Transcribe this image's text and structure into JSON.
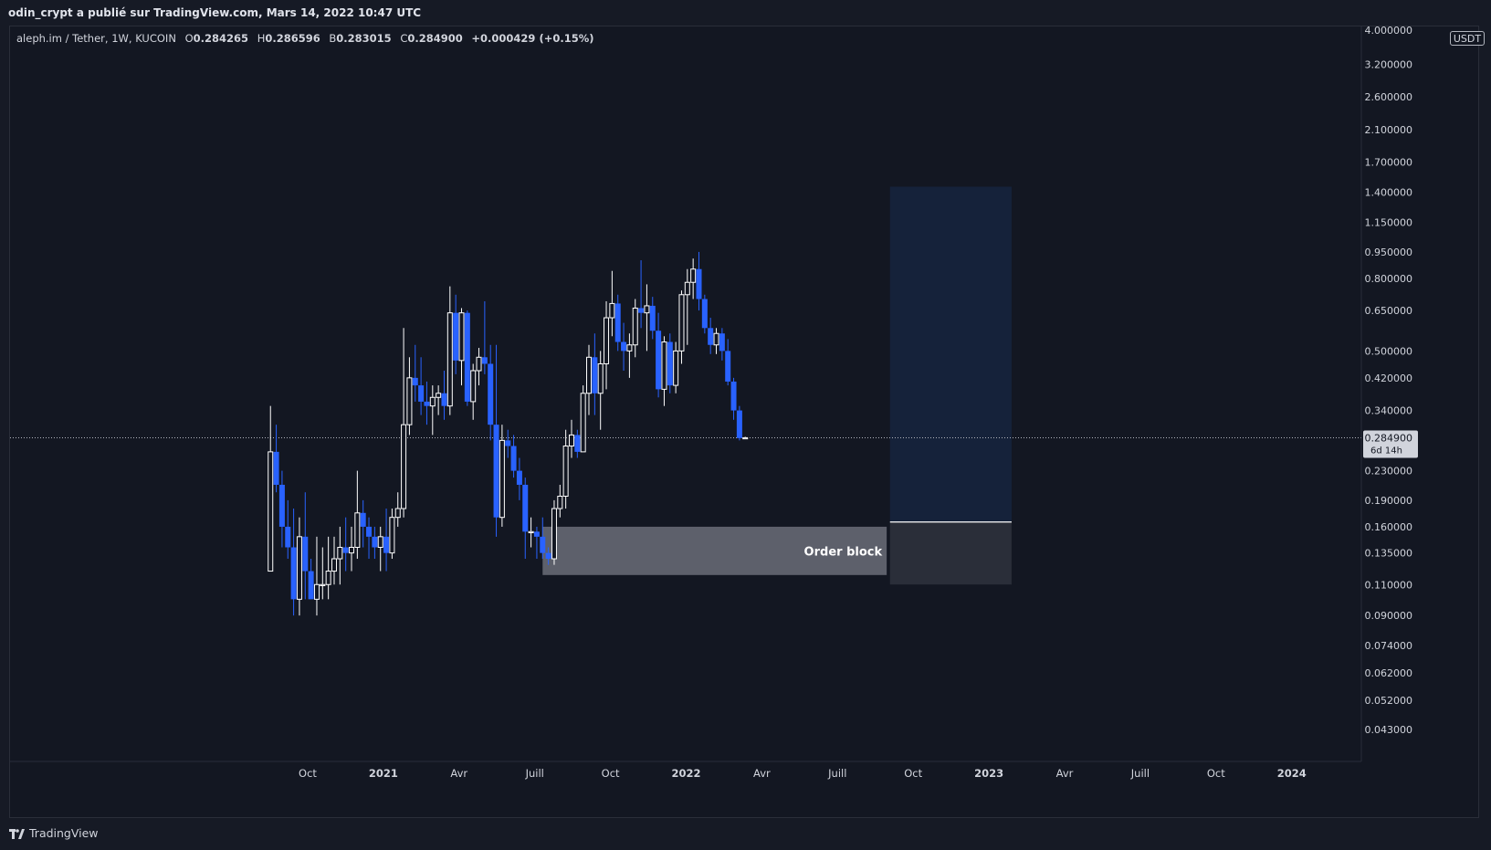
{
  "header": {
    "publisher_text": "odin_crypt a publié sur TradingView.com, Mars 14, 2022 10:47 UTC"
  },
  "legend": {
    "symbol": "aleph.im / Tether, 1W, KUCOIN",
    "open_key": "O",
    "open": "0.284265",
    "high_key": "H",
    "high": "0.286596",
    "low_key": "B",
    "low": "0.283015",
    "close_key": "C",
    "close": "0.284900",
    "change": "+0.000429 (+0.15%)"
  },
  "price_axis": {
    "unit": "USDT",
    "top_partial_label": "4.000000",
    "ticks": [
      "3.200000",
      "2.600000",
      "2.100000",
      "1.700000",
      "1.400000",
      "1.150000",
      "0.950000",
      "0.800000",
      "0.650000",
      "0.500000",
      "0.420000",
      "0.340000",
      "0.230000",
      "0.190000",
      "0.160000",
      "0.135000",
      "0.110000",
      "0.090000",
      "0.074000",
      "0.062000",
      "0.052000",
      "0.043000"
    ],
    "last_price_label": "0.284900",
    "countdown_label": "6d 14h"
  },
  "time_axis": {
    "labels": [
      "Oct",
      "2021",
      "Avr",
      "Juill",
      "Oct",
      "2022",
      "Avr",
      "Juill",
      "Oct",
      "2023",
      "Avr",
      "Juill",
      "Oct",
      "2024"
    ],
    "bold_labels": [
      "2021",
      "2022",
      "2023",
      "2024"
    ]
  },
  "annotations": {
    "order_block_label": "Order block"
  },
  "footer": {
    "brand": "TradingView"
  },
  "colors": {
    "background": "#131722",
    "up_candle": "#ffffff",
    "down_candle": "#2962ff",
    "order_block": "#5d606b",
    "target_zone": "#15223a",
    "stop_zone": "#2a2e39",
    "last_price_line": "#b2b5be"
  },
  "chart_data": {
    "type": "candlestick",
    "symbol": "aleph.im / Tether",
    "interval": "1W",
    "exchange": "KUCOIN",
    "y_scale": "log",
    "ylim": [
      0.036,
      4.0
    ],
    "last_price": 0.2849,
    "candles": [
      {
        "d": "2020-08-17",
        "o": 0.12,
        "h": 0.35,
        "l": 0.12,
        "c": 0.26
      },
      {
        "d": "2020-08-24",
        "o": 0.26,
        "h": 0.31,
        "l": 0.2,
        "c": 0.21
      },
      {
        "d": "2020-08-31",
        "o": 0.21,
        "h": 0.23,
        "l": 0.14,
        "c": 0.16
      },
      {
        "d": "2020-09-07",
        "o": 0.16,
        "h": 0.19,
        "l": 0.13,
        "c": 0.14
      },
      {
        "d": "2020-09-14",
        "o": 0.14,
        "h": 0.18,
        "l": 0.09,
        "c": 0.1
      },
      {
        "d": "2020-09-21",
        "o": 0.1,
        "h": 0.17,
        "l": 0.09,
        "c": 0.15
      },
      {
        "d": "2020-09-28",
        "o": 0.15,
        "h": 0.2,
        "l": 0.1,
        "c": 0.12
      },
      {
        "d": "2020-10-05",
        "o": 0.12,
        "h": 0.13,
        "l": 0.1,
        "c": 0.1
      },
      {
        "d": "2020-10-12",
        "o": 0.1,
        "h": 0.15,
        "l": 0.09,
        "c": 0.11
      },
      {
        "d": "2020-10-19",
        "o": 0.11,
        "h": 0.14,
        "l": 0.1,
        "c": 0.11
      },
      {
        "d": "2020-10-26",
        "o": 0.11,
        "h": 0.15,
        "l": 0.1,
        "c": 0.12
      },
      {
        "d": "2020-11-02",
        "o": 0.12,
        "h": 0.15,
        "l": 0.11,
        "c": 0.13
      },
      {
        "d": "2020-11-09",
        "o": 0.13,
        "h": 0.16,
        "l": 0.11,
        "c": 0.14
      },
      {
        "d": "2020-11-16",
        "o": 0.14,
        "h": 0.17,
        "l": 0.12,
        "c": 0.135
      },
      {
        "d": "2020-11-23",
        "o": 0.135,
        "h": 0.16,
        "l": 0.12,
        "c": 0.14
      },
      {
        "d": "2020-11-30",
        "o": 0.14,
        "h": 0.23,
        "l": 0.13,
        "c": 0.175
      },
      {
        "d": "2020-12-07",
        "o": 0.175,
        "h": 0.19,
        "l": 0.14,
        "c": 0.16
      },
      {
        "d": "2020-12-14",
        "o": 0.16,
        "h": 0.17,
        "l": 0.13,
        "c": 0.15
      },
      {
        "d": "2020-12-21",
        "o": 0.15,
        "h": 0.16,
        "l": 0.13,
        "c": 0.14
      },
      {
        "d": "2020-12-28",
        "o": 0.14,
        "h": 0.16,
        "l": 0.12,
        "c": 0.15
      },
      {
        "d": "2021-01-04",
        "o": 0.15,
        "h": 0.18,
        "l": 0.12,
        "c": 0.135
      },
      {
        "d": "2021-01-11",
        "o": 0.135,
        "h": 0.18,
        "l": 0.13,
        "c": 0.17
      },
      {
        "d": "2021-01-18",
        "o": 0.17,
        "h": 0.2,
        "l": 0.16,
        "c": 0.18
      },
      {
        "d": "2021-01-25",
        "o": 0.18,
        "h": 0.58,
        "l": 0.17,
        "c": 0.31
      },
      {
        "d": "2021-02-01",
        "o": 0.31,
        "h": 0.48,
        "l": 0.29,
        "c": 0.42
      },
      {
        "d": "2021-02-08",
        "o": 0.42,
        "h": 0.52,
        "l": 0.36,
        "c": 0.4
      },
      {
        "d": "2021-02-15",
        "o": 0.4,
        "h": 0.48,
        "l": 0.33,
        "c": 0.36
      },
      {
        "d": "2021-02-22",
        "o": 0.36,
        "h": 0.41,
        "l": 0.31,
        "c": 0.35
      },
      {
        "d": "2021-03-01",
        "o": 0.35,
        "h": 0.4,
        "l": 0.29,
        "c": 0.37
      },
      {
        "d": "2021-03-08",
        "o": 0.37,
        "h": 0.4,
        "l": 0.33,
        "c": 0.38
      },
      {
        "d": "2021-03-15",
        "o": 0.38,
        "h": 0.44,
        "l": 0.32,
        "c": 0.35
      },
      {
        "d": "2021-03-22",
        "o": 0.35,
        "h": 0.76,
        "l": 0.33,
        "c": 0.64
      },
      {
        "d": "2021-03-29",
        "o": 0.64,
        "h": 0.72,
        "l": 0.43,
        "c": 0.47
      },
      {
        "d": "2021-04-05",
        "o": 0.47,
        "h": 0.66,
        "l": 0.4,
        "c": 0.64
      },
      {
        "d": "2021-04-12",
        "o": 0.64,
        "h": 0.65,
        "l": 0.35,
        "c": 0.36
      },
      {
        "d": "2021-04-19",
        "o": 0.36,
        "h": 0.46,
        "l": 0.32,
        "c": 0.44
      },
      {
        "d": "2021-04-26",
        "o": 0.44,
        "h": 0.51,
        "l": 0.4,
        "c": 0.48
      },
      {
        "d": "2021-05-03",
        "o": 0.48,
        "h": 0.69,
        "l": 0.43,
        "c": 0.46
      },
      {
        "d": "2021-05-10",
        "o": 0.46,
        "h": 0.52,
        "l": 0.28,
        "c": 0.31
      },
      {
        "d": "2021-05-17",
        "o": 0.31,
        "h": 0.52,
        "l": 0.15,
        "c": 0.17
      },
      {
        "d": "2021-05-24",
        "o": 0.17,
        "h": 0.31,
        "l": 0.16,
        "c": 0.28
      },
      {
        "d": "2021-05-31",
        "o": 0.28,
        "h": 0.3,
        "l": 0.25,
        "c": 0.27
      },
      {
        "d": "2021-06-07",
        "o": 0.27,
        "h": 0.29,
        "l": 0.22,
        "c": 0.23
      },
      {
        "d": "2021-06-14",
        "o": 0.23,
        "h": 0.25,
        "l": 0.19,
        "c": 0.21
      },
      {
        "d": "2021-06-21",
        "o": 0.21,
        "h": 0.22,
        "l": 0.13,
        "c": 0.155
      },
      {
        "d": "2021-06-28",
        "o": 0.155,
        "h": 0.17,
        "l": 0.14,
        "c": 0.155
      },
      {
        "d": "2021-07-05",
        "o": 0.155,
        "h": 0.16,
        "l": 0.13,
        "c": 0.15
      },
      {
        "d": "2021-07-12",
        "o": 0.15,
        "h": 0.17,
        "l": 0.13,
        "c": 0.135
      },
      {
        "d": "2021-07-19",
        "o": 0.135,
        "h": 0.14,
        "l": 0.125,
        "c": 0.13
      },
      {
        "d": "2021-07-26",
        "o": 0.13,
        "h": 0.19,
        "l": 0.125,
        "c": 0.18
      },
      {
        "d": "2021-08-02",
        "o": 0.18,
        "h": 0.21,
        "l": 0.17,
        "c": 0.195
      },
      {
        "d": "2021-08-09",
        "o": 0.195,
        "h": 0.3,
        "l": 0.18,
        "c": 0.27
      },
      {
        "d": "2021-08-16",
        "o": 0.27,
        "h": 0.32,
        "l": 0.25,
        "c": 0.29
      },
      {
        "d": "2021-08-23",
        "o": 0.29,
        "h": 0.3,
        "l": 0.25,
        "c": 0.26
      },
      {
        "d": "2021-08-30",
        "o": 0.26,
        "h": 0.4,
        "l": 0.26,
        "c": 0.38
      },
      {
        "d": "2021-09-06",
        "o": 0.38,
        "h": 0.52,
        "l": 0.33,
        "c": 0.48
      },
      {
        "d": "2021-09-13",
        "o": 0.48,
        "h": 0.56,
        "l": 0.33,
        "c": 0.38
      },
      {
        "d": "2021-09-20",
        "o": 0.38,
        "h": 0.5,
        "l": 0.3,
        "c": 0.46
      },
      {
        "d": "2021-09-27",
        "o": 0.46,
        "h": 0.69,
        "l": 0.39,
        "c": 0.62
      },
      {
        "d": "2021-10-04",
        "o": 0.62,
        "h": 0.84,
        "l": 0.55,
        "c": 0.68
      },
      {
        "d": "2021-10-11",
        "o": 0.68,
        "h": 0.72,
        "l": 0.5,
        "c": 0.53
      },
      {
        "d": "2021-10-18",
        "o": 0.53,
        "h": 0.6,
        "l": 0.44,
        "c": 0.5
      },
      {
        "d": "2021-10-25",
        "o": 0.5,
        "h": 0.56,
        "l": 0.42,
        "c": 0.52
      },
      {
        "d": "2021-11-01",
        "o": 0.52,
        "h": 0.7,
        "l": 0.48,
        "c": 0.66
      },
      {
        "d": "2021-11-08",
        "o": 0.66,
        "h": 0.9,
        "l": 0.58,
        "c": 0.64
      },
      {
        "d": "2021-11-15",
        "o": 0.64,
        "h": 0.77,
        "l": 0.5,
        "c": 0.67
      },
      {
        "d": "2021-11-22",
        "o": 0.67,
        "h": 0.71,
        "l": 0.54,
        "c": 0.57
      },
      {
        "d": "2021-11-29",
        "o": 0.57,
        "h": 0.64,
        "l": 0.37,
        "c": 0.39
      },
      {
        "d": "2021-12-06",
        "o": 0.39,
        "h": 0.55,
        "l": 0.35,
        "c": 0.53
      },
      {
        "d": "2021-12-13",
        "o": 0.53,
        "h": 0.56,
        "l": 0.38,
        "c": 0.4
      },
      {
        "d": "2021-12-20",
        "o": 0.4,
        "h": 0.53,
        "l": 0.38,
        "c": 0.5
      },
      {
        "d": "2021-12-27",
        "o": 0.5,
        "h": 0.74,
        "l": 0.46,
        "c": 0.72
      },
      {
        "d": "2022-01-03",
        "o": 0.72,
        "h": 0.85,
        "l": 0.52,
        "c": 0.78
      },
      {
        "d": "2022-01-10",
        "o": 0.78,
        "h": 0.91,
        "l": 0.7,
        "c": 0.85
      },
      {
        "d": "2022-01-17",
        "o": 0.85,
        "h": 0.95,
        "l": 0.65,
        "c": 0.7
      },
      {
        "d": "2022-01-24",
        "o": 0.7,
        "h": 0.72,
        "l": 0.56,
        "c": 0.58
      },
      {
        "d": "2022-01-31",
        "o": 0.58,
        "h": 0.62,
        "l": 0.49,
        "c": 0.52
      },
      {
        "d": "2022-02-07",
        "o": 0.52,
        "h": 0.58,
        "l": 0.49,
        "c": 0.56
      },
      {
        "d": "2022-02-14",
        "o": 0.56,
        "h": 0.58,
        "l": 0.47,
        "c": 0.5
      },
      {
        "d": "2022-02-21",
        "o": 0.5,
        "h": 0.54,
        "l": 0.4,
        "c": 0.41
      },
      {
        "d": "2022-02-28",
        "o": 0.41,
        "h": 0.42,
        "l": 0.32,
        "c": 0.34
      },
      {
        "d": "2022-03-07",
        "o": 0.34,
        "h": 0.35,
        "l": 0.28,
        "c": 0.2843
      },
      {
        "d": "2022-03-14",
        "o": 0.284265,
        "h": 0.286596,
        "l": 0.283015,
        "c": 0.2849
      }
    ],
    "order_block": {
      "from": "2021-07-12",
      "to": "2022-09-01",
      "top": 0.16,
      "bottom": 0.117
    },
    "position_tool": {
      "from": "2022-09-05",
      "to": "2023-01-30",
      "entry": 0.165,
      "target": 1.45,
      "stop": 0.11
    }
  }
}
